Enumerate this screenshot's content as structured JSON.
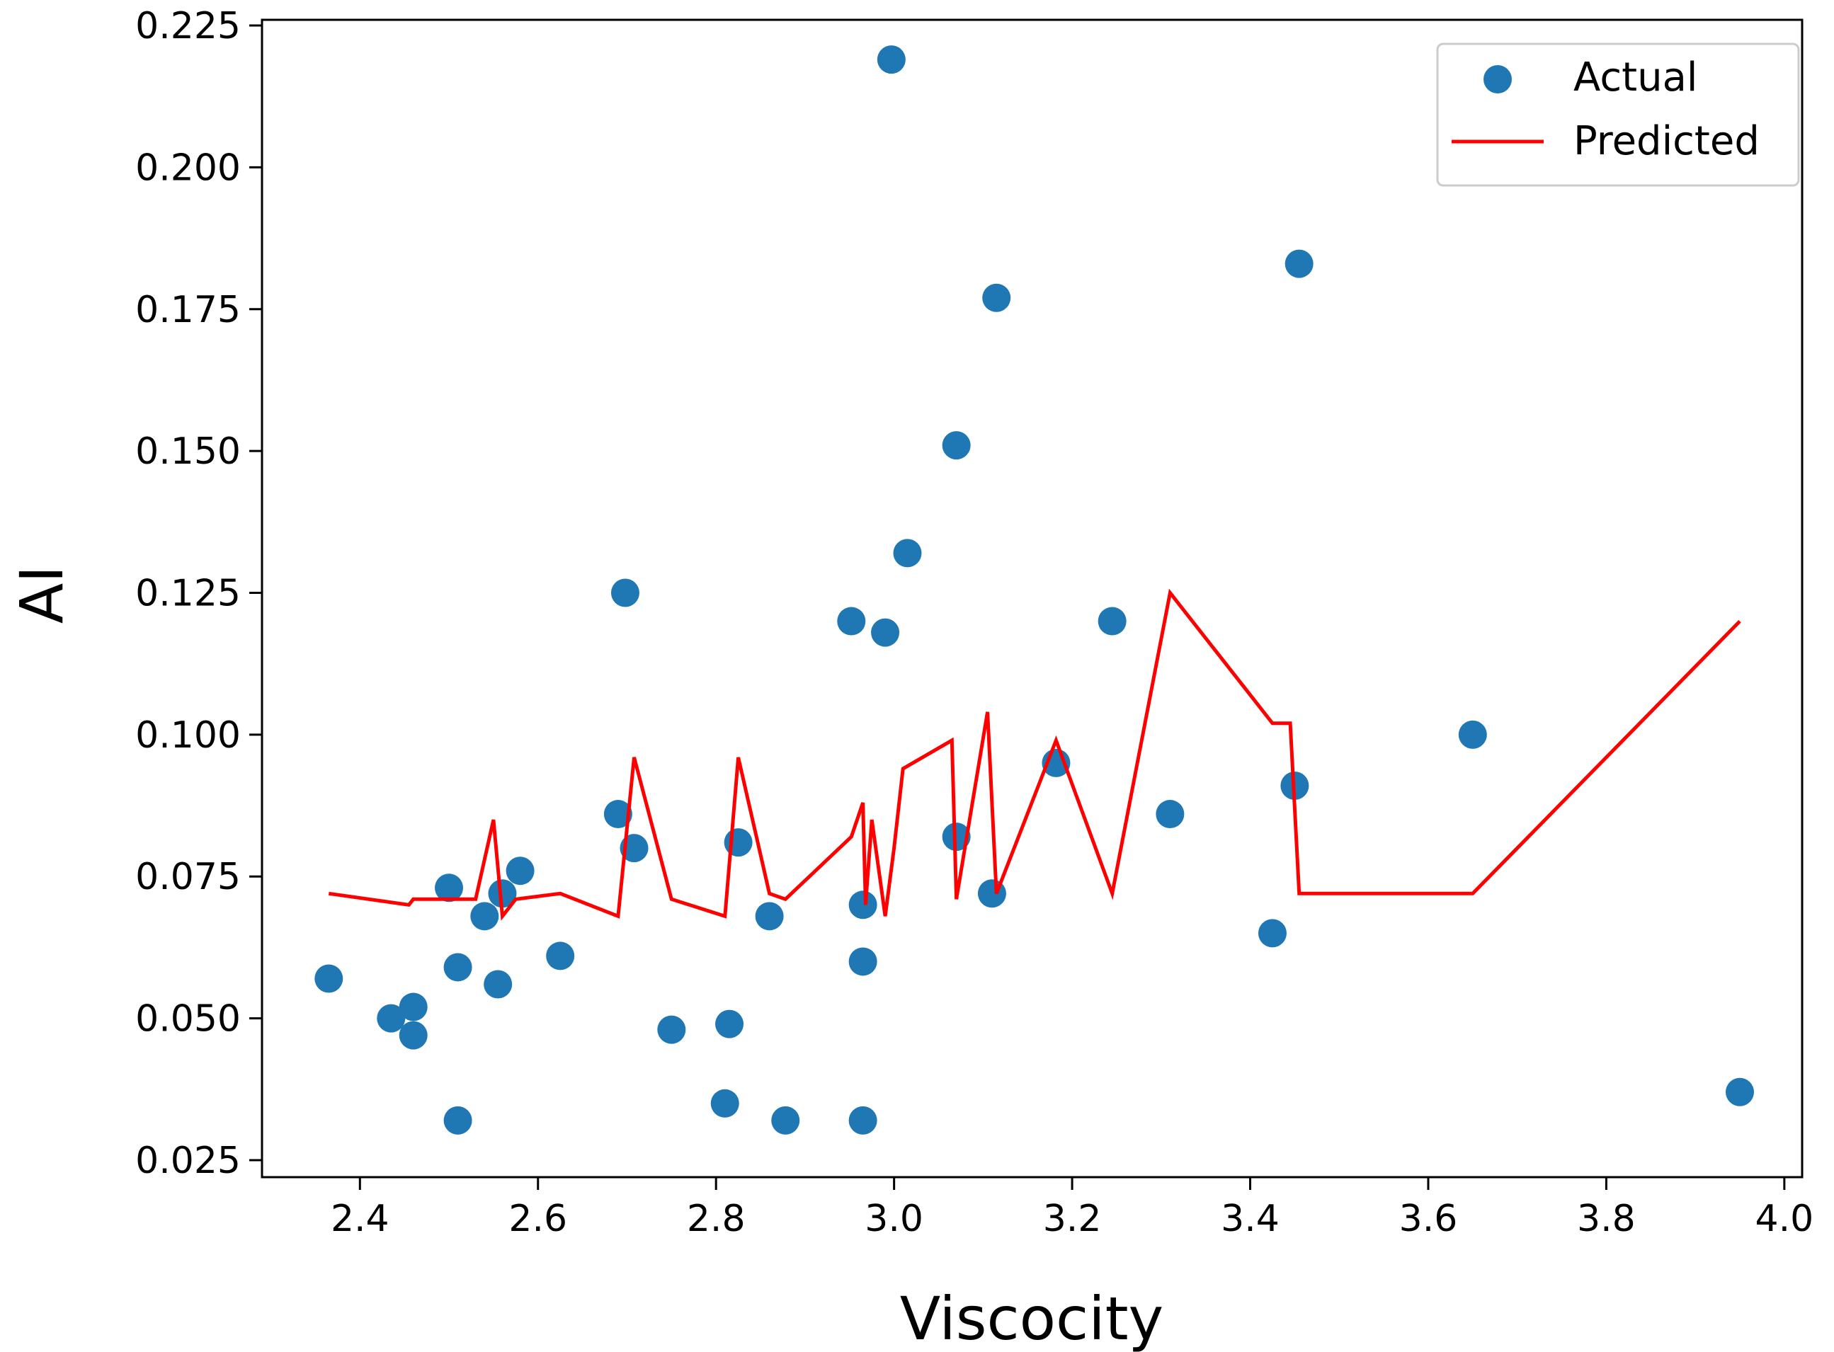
{
  "chart_data": {
    "type": "scatter",
    "title": "",
    "xlabel": "Viscocity",
    "ylabel": "AI",
    "xlim": [
      2.29,
      4.02
    ],
    "ylim": [
      0.022,
      0.226
    ],
    "xticks": [
      2.4,
      2.6,
      2.8,
      3.0,
      3.2,
      3.4,
      3.6,
      3.8,
      4.0
    ],
    "xtick_labels": [
      "2.4",
      "2.6",
      "2.8",
      "3.0",
      "3.2",
      "3.4",
      "3.6",
      "3.8",
      "4.0"
    ],
    "yticks": [
      0.025,
      0.05,
      0.075,
      0.1,
      0.125,
      0.15,
      0.175,
      0.2,
      0.225
    ],
    "ytick_labels": [
      "0.025",
      "0.050",
      "0.075",
      "0.100",
      "0.125",
      "0.150",
      "0.175",
      "0.200",
      "0.225"
    ],
    "legend_position": "top-right",
    "colors": {
      "actual": "#1f77b4",
      "predicted": "#ff0000"
    },
    "series": [
      {
        "name": "Actual",
        "kind": "scatter",
        "points": [
          [
            2.365,
            0.057
          ],
          [
            2.435,
            0.05
          ],
          [
            2.46,
            0.052
          ],
          [
            2.46,
            0.047
          ],
          [
            2.5,
            0.073
          ],
          [
            2.51,
            0.059
          ],
          [
            2.51,
            0.032
          ],
          [
            2.54,
            0.068
          ],
          [
            2.555,
            0.056
          ],
          [
            2.56,
            0.072
          ],
          [
            2.58,
            0.076
          ],
          [
            2.625,
            0.061
          ],
          [
            2.69,
            0.086
          ],
          [
            2.698,
            0.125
          ],
          [
            2.708,
            0.08
          ],
          [
            2.75,
            0.048
          ],
          [
            2.81,
            0.035
          ],
          [
            2.815,
            0.049
          ],
          [
            2.825,
            0.081
          ],
          [
            2.86,
            0.068
          ],
          [
            2.878,
            0.032
          ],
          [
            2.952,
            0.12
          ],
          [
            2.965,
            0.07
          ],
          [
            2.965,
            0.06
          ],
          [
            2.965,
            0.032
          ],
          [
            2.99,
            0.118
          ],
          [
            2.997,
            0.219
          ],
          [
            3.015,
            0.132
          ],
          [
            3.07,
            0.151
          ],
          [
            3.07,
            0.082
          ],
          [
            3.11,
            0.072
          ],
          [
            3.115,
            0.177
          ],
          [
            3.182,
            0.095
          ],
          [
            3.245,
            0.12
          ],
          [
            3.31,
            0.086
          ],
          [
            3.425,
            0.065
          ],
          [
            3.45,
            0.091
          ],
          [
            3.455,
            0.183
          ],
          [
            3.65,
            0.1
          ],
          [
            3.95,
            0.037
          ]
        ]
      },
      {
        "name": "Predicted",
        "kind": "line",
        "points": [
          [
            2.365,
            0.072
          ],
          [
            2.455,
            0.07
          ],
          [
            2.46,
            0.071
          ],
          [
            2.51,
            0.071
          ],
          [
            2.53,
            0.071
          ],
          [
            2.55,
            0.085
          ],
          [
            2.56,
            0.068
          ],
          [
            2.575,
            0.071
          ],
          [
            2.625,
            0.072
          ],
          [
            2.69,
            0.068
          ],
          [
            2.708,
            0.096
          ],
          [
            2.75,
            0.071
          ],
          [
            2.81,
            0.068
          ],
          [
            2.825,
            0.096
          ],
          [
            2.86,
            0.072
          ],
          [
            2.878,
            0.071
          ],
          [
            2.952,
            0.082
          ],
          [
            2.965,
            0.088
          ],
          [
            2.968,
            0.07
          ],
          [
            2.975,
            0.085
          ],
          [
            2.99,
            0.068
          ],
          [
            3.0,
            0.08
          ],
          [
            3.01,
            0.094
          ],
          [
            3.065,
            0.099
          ],
          [
            3.07,
            0.071
          ],
          [
            3.105,
            0.104
          ],
          [
            3.115,
            0.072
          ],
          [
            3.182,
            0.099
          ],
          [
            3.245,
            0.072
          ],
          [
            3.31,
            0.125
          ],
          [
            3.425,
            0.102
          ],
          [
            3.445,
            0.102
          ],
          [
            3.455,
            0.072
          ],
          [
            3.65,
            0.072
          ],
          [
            3.95,
            0.12
          ]
        ]
      }
    ]
  }
}
